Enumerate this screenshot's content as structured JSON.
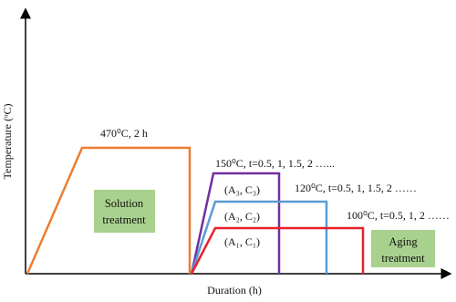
{
  "axes": {
    "y_label": "Temperature (ᵒC)",
    "x_label": "Duration (h)"
  },
  "annotations": {
    "solution": "470⁰C, 2 h",
    "aging_150": "150⁰C, t=0.5, 1, 1.5, 2 …...",
    "aging_120": "120⁰C, t=0.5, 1, 1.5, 2 ……",
    "aging_100": "100⁰C, t=0.5, 1, 2 ……",
    "sample_3": "(A₃, C₃)",
    "sample_2": "(A₂, C₂)",
    "sample_1": "(A₁, C₁)"
  },
  "boxes": {
    "solution": [
      "Solution",
      "treatment"
    ],
    "aging": [
      "Aging",
      "treatment"
    ]
  }
}
